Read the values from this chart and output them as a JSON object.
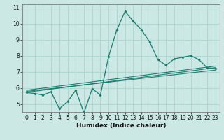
{
  "title": "",
  "xlabel": "Humidex (Indice chaleur)",
  "background_color": "#cce8e4",
  "grid_color": "#aad4ce",
  "line_color": "#1a7a6e",
  "xlim": [
    -0.5,
    23.5
  ],
  "ylim": [
    4.5,
    11.2
  ],
  "xticks": [
    0,
    1,
    2,
    3,
    4,
    5,
    6,
    7,
    8,
    9,
    10,
    11,
    12,
    13,
    14,
    15,
    16,
    17,
    18,
    19,
    20,
    21,
    22,
    23
  ],
  "yticks": [
    5,
    6,
    7,
    8,
    9,
    10,
    11
  ],
  "main_x": [
    0,
    1,
    2,
    3,
    4,
    5,
    6,
    7,
    8,
    9,
    10,
    11,
    12,
    13,
    14,
    15,
    16,
    17,
    18,
    19,
    20,
    21,
    22,
    23
  ],
  "main_y": [
    5.7,
    5.65,
    5.55,
    5.75,
    4.7,
    5.15,
    5.85,
    4.45,
    5.95,
    5.55,
    7.95,
    9.6,
    10.75,
    10.15,
    9.6,
    8.85,
    7.75,
    7.4,
    7.8,
    7.9,
    8.0,
    7.75,
    7.25,
    7.2
  ],
  "trend1_x": [
    0,
    23
  ],
  "trend1_y": [
    5.72,
    7.25
  ],
  "trend2_x": [
    0,
    23
  ],
  "trend2_y": [
    5.85,
    7.35
  ],
  "trend3_x": [
    0,
    23
  ],
  "trend3_y": [
    5.78,
    7.1
  ]
}
